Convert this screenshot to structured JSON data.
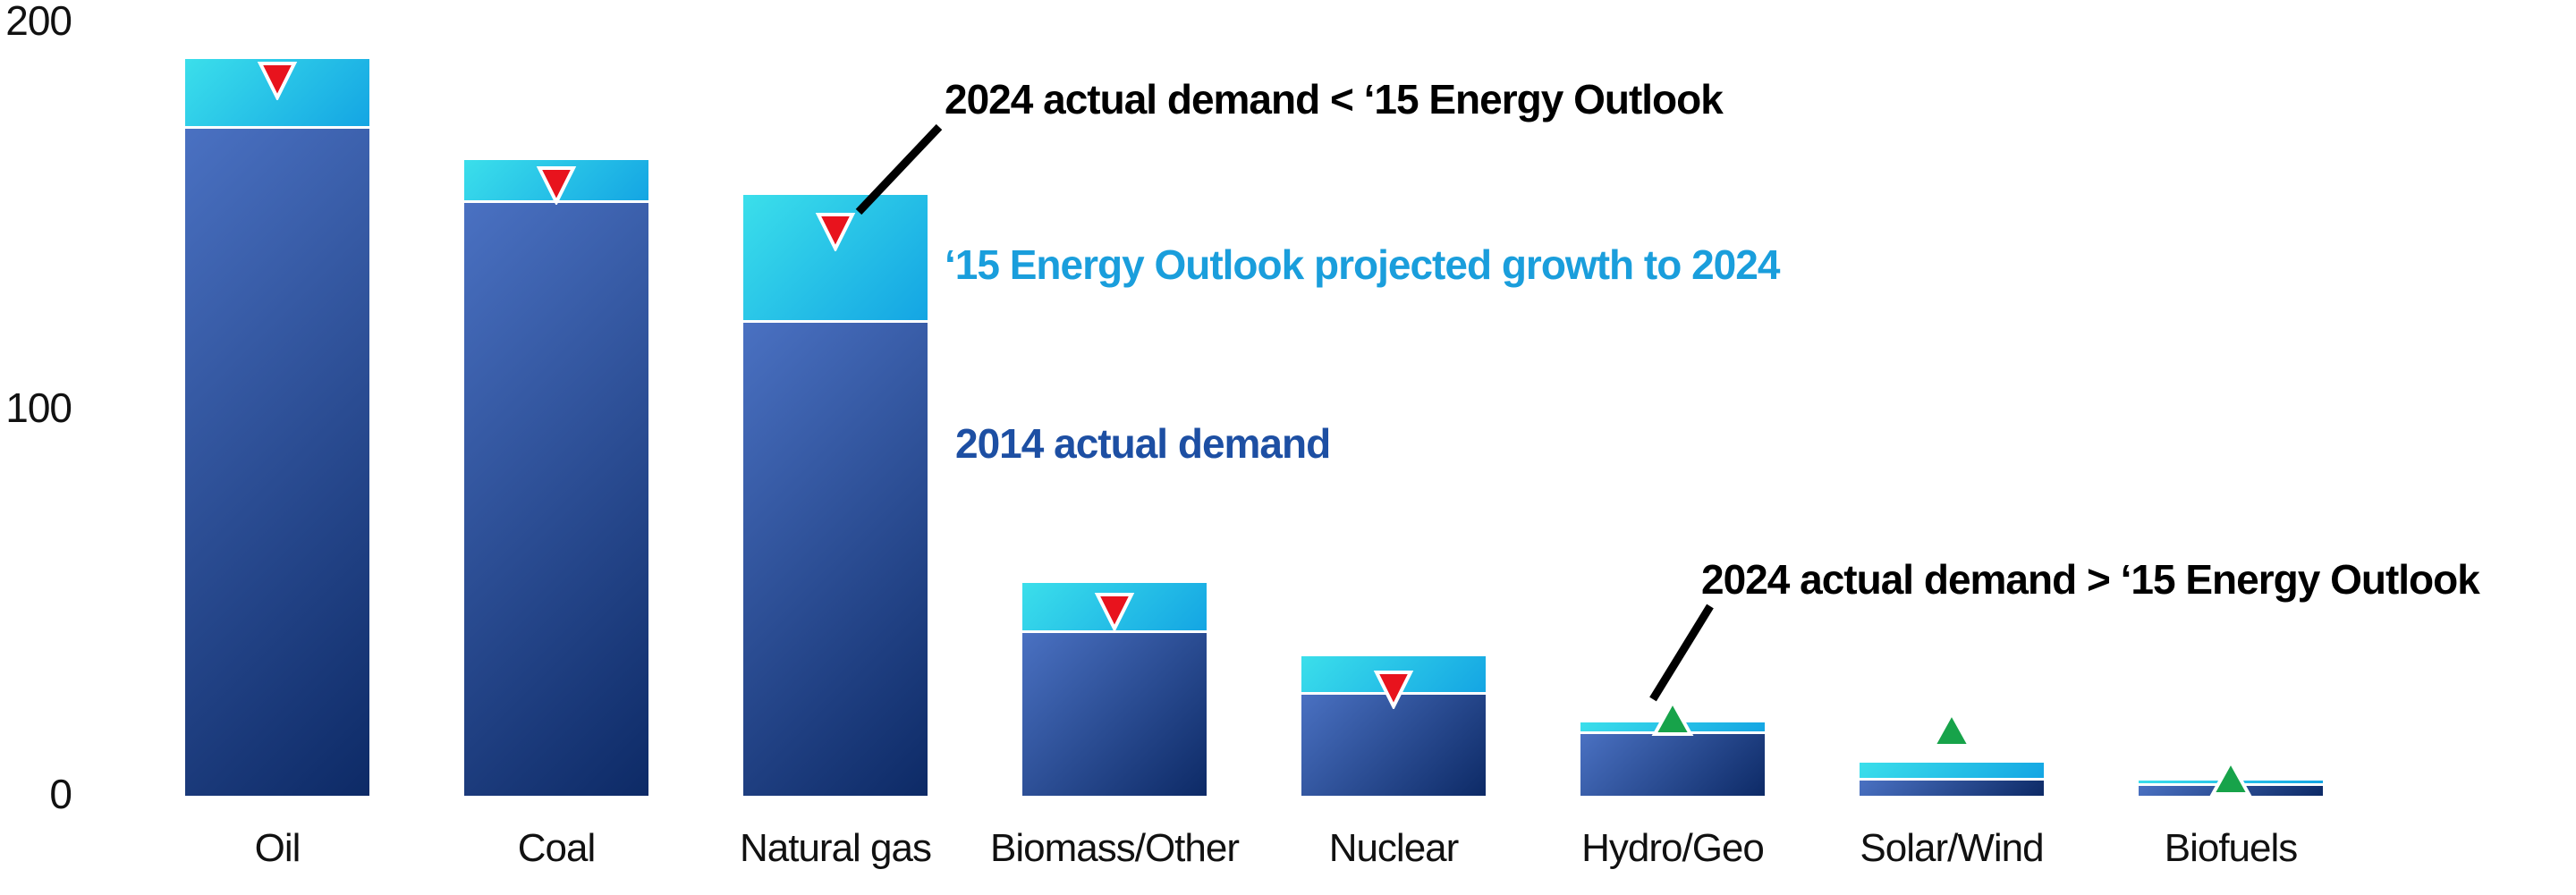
{
  "chart_data": {
    "type": "bar",
    "stacked": true,
    "grid": false,
    "categories": [
      "Oil",
      "Coal",
      "Natural gas",
      "Biomass/Other",
      "Nuclear",
      "Hydro/Geo",
      "Solar/Wind",
      "Biofuels"
    ],
    "series": [
      {
        "name": "2014 actual demand",
        "values": [
          172,
          153,
          122,
          42,
          26,
          16,
          4,
          2.5
        ],
        "gradient_top": "#4A71C2",
        "gradient_bottom": "#0D2A66"
      },
      {
        "name": "‘15 Energy Outlook projected growth to 2024",
        "values": [
          18,
          11,
          33,
          13,
          10,
          3,
          4.5,
          1.5
        ],
        "gradient_top": "#3BDFEB",
        "gradient_bottom": "#14A5E3"
      }
    ],
    "projected_2024_totals": [
      190,
      164,
      155,
      55,
      36,
      19,
      8.5,
      4
    ],
    "markers": {
      "name": "2024 actual demand",
      "values": [
        185,
        158,
        146,
        48,
        28,
        20,
        17,
        4.5
      ],
      "directions": [
        "down",
        "down",
        "down",
        "down",
        "down",
        "up",
        "up",
        "up"
      ],
      "down_meaning": "2024 actual demand < ‘15 Energy Outlook",
      "up_meaning": "2024 actual demand > ‘15 Energy Outlook",
      "color_down": "#E8131D",
      "color_up": "#17A34A",
      "marker_outline": "#FFFFFF"
    },
    "ylim": [
      0,
      205
    ],
    "yticks": [
      0,
      100,
      200
    ],
    "legend_position": "inline annotations on plot"
  },
  "annotations": {
    "below_outlook": {
      "text": "2024 actual demand < ‘15 Energy Outlook",
      "color": "#000000"
    },
    "projected_growth": {
      "text": "‘15 Energy Outlook projected growth to 2024",
      "color": "#1A9EDC"
    },
    "actual_2014": {
      "text": "2014 actual demand",
      "color": "#1D4FA3"
    },
    "above_outlook": {
      "text": "2024 actual demand > ‘15 Energy Outlook",
      "color": "#000000"
    }
  },
  "colors": {
    "background": "#FFFFFF",
    "axis_text": "#111111",
    "separator_line": "#FFFFFF",
    "leader_line": "#000000"
  }
}
